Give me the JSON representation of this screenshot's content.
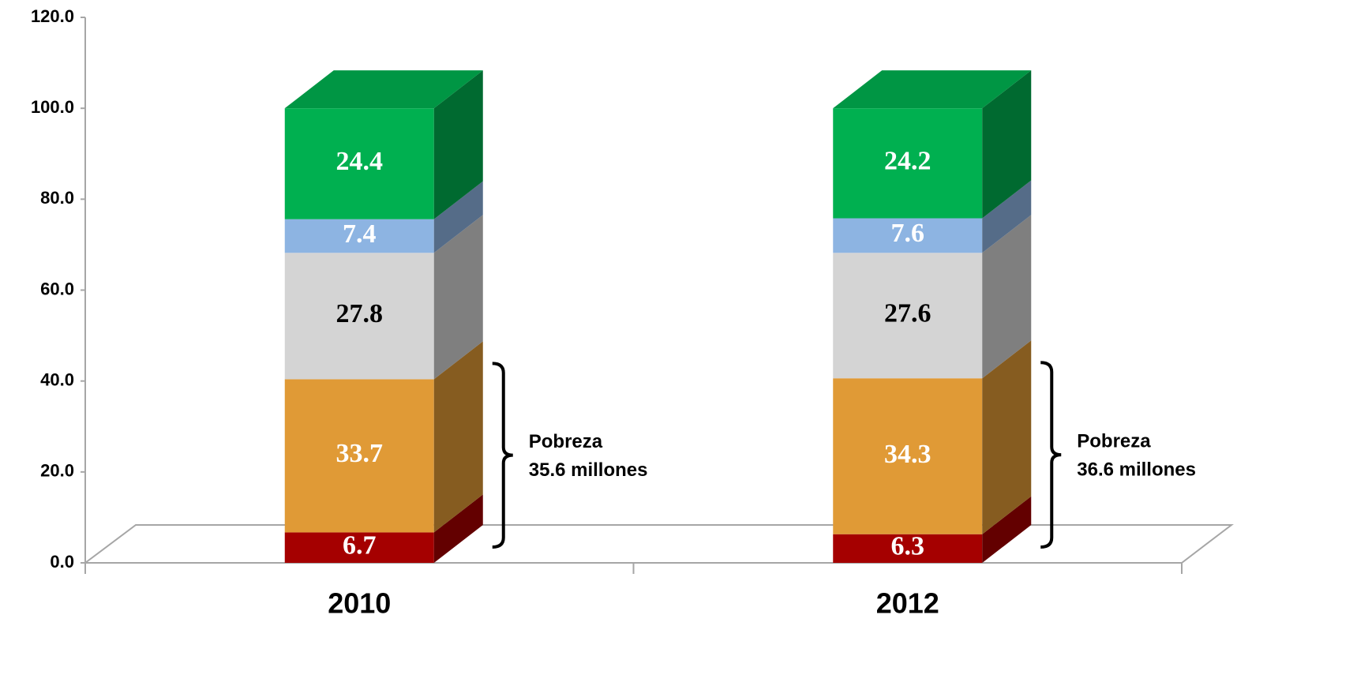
{
  "chart_data": {
    "type": "stacked_bar_3d",
    "categories": [
      "2010",
      "2012"
    ],
    "series": [
      {
        "color": "#a50000",
        "label_color": "#ffffff",
        "values": [
          6.7,
          6.3
        ]
      },
      {
        "color": "#e09a36",
        "label_color": "#ffffff",
        "values": [
          33.7,
          34.3
        ]
      },
      {
        "color": "#d4d4d4",
        "label_color": "#000000",
        "values": [
          27.8,
          27.6
        ]
      },
      {
        "color": "#8db4e2",
        "label_color": "#ffffff",
        "values": [
          7.4,
          7.6
        ]
      },
      {
        "color": "#00b050",
        "label_color": "#ffffff",
        "values": [
          24.4,
          24.2
        ]
      }
    ],
    "ylim": [
      0,
      120
    ],
    "yticks": [
      {
        "value": 0,
        "label": "0.0"
      },
      {
        "value": 20,
        "label": "20.0"
      },
      {
        "value": 40,
        "label": "40.0"
      },
      {
        "value": 60,
        "label": "60.0"
      },
      {
        "value": 80,
        "label": "80.0"
      },
      {
        "value": 100,
        "label": "100.0"
      },
      {
        "value": 120,
        "label": "120.0"
      }
    ],
    "annotations": [
      {
        "lines": [
          "Pobreza",
          "35.6 millones"
        ]
      },
      {
        "lines": [
          "Pobreza",
          "36.6 millones"
        ]
      }
    ]
  }
}
